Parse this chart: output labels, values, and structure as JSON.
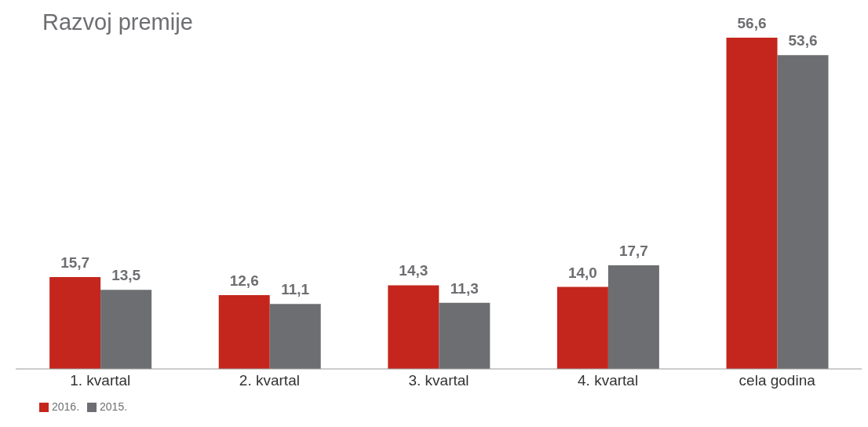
{
  "chart_data": {
    "type": "bar",
    "title": "Razvoj premije",
    "categories": [
      "1. kvartal",
      "2. kvartal",
      "3. kvartal",
      "4. kvartal",
      "cela godina"
    ],
    "series": [
      {
        "name": "2016.",
        "color": "#c4261d",
        "values": [
          15.7,
          12.6,
          14.3,
          14.0,
          56.6
        ],
        "value_labels": [
          "15,7",
          "12,6",
          "14,3",
          "14,0",
          "56,6"
        ]
      },
      {
        "name": "2015.",
        "color": "#6d6e71",
        "values": [
          13.5,
          11.1,
          11.3,
          17.7,
          53.6
        ],
        "value_labels": [
          "13,5",
          "11,1",
          "11,3",
          "17,7",
          "53,6"
        ]
      }
    ],
    "legend": "bottom left",
    "grid": false
  }
}
